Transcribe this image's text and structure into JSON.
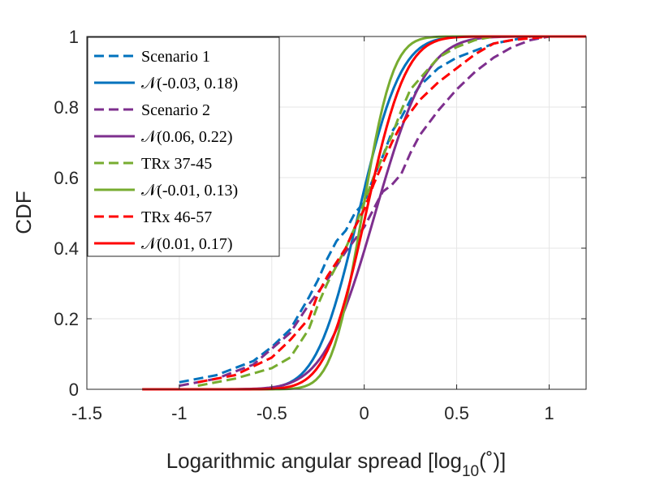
{
  "chart_data": {
    "type": "line",
    "title": "",
    "xlabel": "Logarithmic angular spread [log",
    "xlabel_sub": "10",
    "xlabel_tail": "(˚)]",
    "ylabel": "CDF",
    "xlim": [
      -1.5,
      1.2
    ],
    "ylim": [
      0,
      1
    ],
    "xticks": [
      -1.5,
      -1,
      -0.5,
      0,
      0.5,
      1
    ],
    "xtick_labels": [
      "-1.5",
      "-1",
      "-0.5",
      "0",
      "0.5",
      "1"
    ],
    "yticks": [
      0,
      0.2,
      0.4,
      0.6,
      0.8,
      1
    ],
    "ytick_labels": [
      "0",
      "0.2",
      "0.4",
      "0.6",
      "0.8",
      "1"
    ],
    "grid": true,
    "legend_position": "top-left",
    "series": [
      {
        "name": "Scenario 1",
        "kind": "empirical",
        "style": "dashed",
        "color": "#0072BD",
        "x": [
          -1.0,
          -0.8,
          -0.6,
          -0.5,
          -0.4,
          -0.3,
          -0.25,
          -0.2,
          -0.15,
          -0.1,
          -0.05,
          0.0,
          0.05,
          0.1,
          0.15,
          0.2,
          0.25,
          0.3,
          0.4,
          0.5,
          0.6,
          0.7,
          0.8,
          0.9,
          1.0
        ],
        "y": [
          0.02,
          0.04,
          0.08,
          0.12,
          0.17,
          0.26,
          0.31,
          0.37,
          0.42,
          0.45,
          0.5,
          0.53,
          0.6,
          0.66,
          0.73,
          0.77,
          0.82,
          0.86,
          0.91,
          0.94,
          0.96,
          0.98,
          0.99,
          1.0,
          1.0
        ]
      },
      {
        "name": "𝒩(-0.03, 0.18)",
        "kind": "fit",
        "style": "solid",
        "color": "#0072BD",
        "mu": -0.03,
        "sigma": 0.18
      },
      {
        "name": "Scenario 2",
        "kind": "empirical",
        "style": "dashed",
        "color": "#7E2F8E",
        "x": [
          -1.0,
          -0.8,
          -0.6,
          -0.4,
          -0.3,
          -0.2,
          -0.1,
          0.0,
          0.05,
          0.1,
          0.15,
          0.2,
          0.25,
          0.3,
          0.4,
          0.5,
          0.6,
          0.7,
          0.8,
          0.9,
          1.0,
          1.1
        ],
        "y": [
          0.01,
          0.03,
          0.07,
          0.16,
          0.24,
          0.31,
          0.39,
          0.46,
          0.51,
          0.56,
          0.58,
          0.61,
          0.67,
          0.72,
          0.79,
          0.85,
          0.9,
          0.94,
          0.97,
          0.99,
          1.0,
          1.0
        ]
      },
      {
        "name": "𝒩(0.06, 0.22)",
        "kind": "fit",
        "style": "solid",
        "color": "#7E2F8E",
        "mu": 0.06,
        "sigma": 0.22
      },
      {
        "name": "TRx 37-45",
        "kind": "empirical",
        "style": "dashed",
        "color": "#77AC30",
        "x": [
          -0.9,
          -0.7,
          -0.5,
          -0.4,
          -0.3,
          -0.25,
          -0.2,
          -0.15,
          -0.1,
          -0.05,
          0.0,
          0.05,
          0.1,
          0.15,
          0.2,
          0.25,
          0.3,
          0.4,
          0.5,
          0.6,
          0.7,
          0.8
        ],
        "y": [
          0.01,
          0.03,
          0.06,
          0.09,
          0.17,
          0.24,
          0.3,
          0.35,
          0.4,
          0.46,
          0.53,
          0.6,
          0.66,
          0.72,
          0.79,
          0.85,
          0.88,
          0.94,
          0.97,
          0.99,
          1.0,
          1.0
        ]
      },
      {
        "name": "𝒩(-0.01, 0.13)",
        "kind": "fit",
        "style": "solid",
        "color": "#77AC30",
        "mu": -0.01,
        "sigma": 0.13
      },
      {
        "name": "TRx 46-57",
        "kind": "empirical",
        "style": "dashed",
        "color": "#FF0000",
        "x": [
          -0.9,
          -0.7,
          -0.5,
          -0.4,
          -0.3,
          -0.25,
          -0.2,
          -0.15,
          -0.1,
          -0.05,
          0.0,
          0.05,
          0.1,
          0.15,
          0.2,
          0.3,
          0.4,
          0.5,
          0.6,
          0.7,
          0.8,
          1.0
        ],
        "y": [
          0.02,
          0.04,
          0.09,
          0.14,
          0.2,
          0.27,
          0.32,
          0.36,
          0.4,
          0.46,
          0.51,
          0.58,
          0.64,
          0.7,
          0.75,
          0.82,
          0.87,
          0.91,
          0.95,
          0.98,
          0.99,
          1.0
        ]
      },
      {
        "name": "𝒩(0.01, 0.17)",
        "kind": "fit",
        "style": "solid",
        "color": "#FF0000",
        "mu": 0.01,
        "sigma": 0.17
      }
    ]
  }
}
